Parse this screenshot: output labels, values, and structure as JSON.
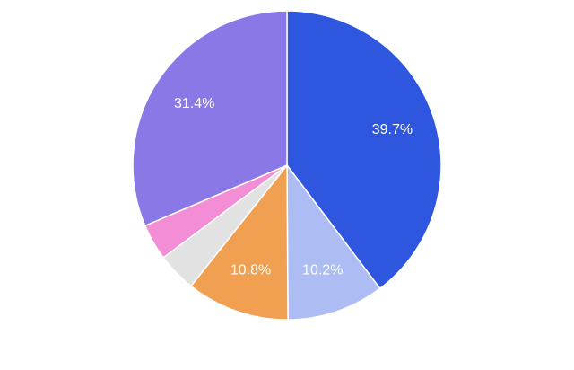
{
  "chart_data": {
    "type": "pie",
    "values": [
      39.7,
      10.2,
      10.8,
      4.1,
      3.8,
      31.4
    ],
    "value_labels": [
      "39.7%",
      "10.2%",
      "10.8%",
      null,
      null,
      "31.4%"
    ],
    "colors": [
      "#2f56de",
      "#adbcf2",
      "#f0a050",
      "#e2e2e2",
      "#f38ed6",
      "#8a78e6"
    ],
    "start_angle": 0,
    "direction": "clockwise"
  }
}
